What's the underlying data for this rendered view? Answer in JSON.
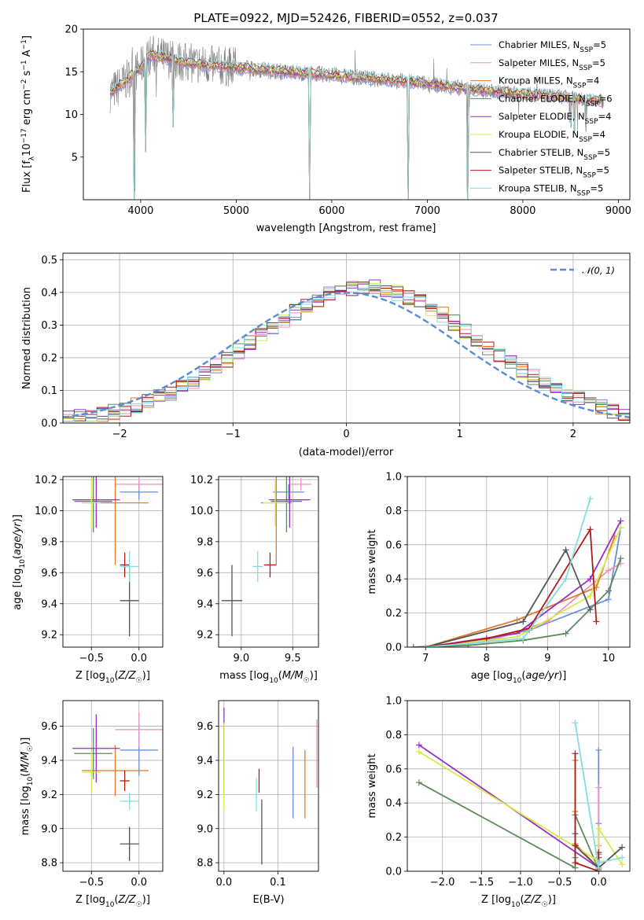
{
  "figure": {
    "title": "PLATE=0922, MJD=52426, FIBERID=0552, z=0.037"
  },
  "series_styles": [
    {
      "name": "Chabrier MILES, N_SSP=5",
      "color": "#6a8fe0"
    },
    {
      "name": "Salpeter MILES, N_SSP=5",
      "color": "#ee8fbf"
    },
    {
      "name": "Kroupa MILES, N_SSP=4",
      "color": "#e6782a"
    },
    {
      "name": "Chabrier ELODIE, N_SSP=6",
      "color": "#5e8a5e"
    },
    {
      "name": "Salpeter ELODIE, N_SSP=4",
      "color": "#9a2fc4"
    },
    {
      "name": "Kroupa ELODIE, N_SSP=4",
      "color": "#d6ea4a"
    },
    {
      "name": "Chabrier STELIB, N_SSP=5",
      "color": "#555555"
    },
    {
      "name": "Salpeter STELIB, N_SSP=5",
      "color": "#b01c1c"
    },
    {
      "name": "Kroupa STELIB, N_SSP=5",
      "color": "#84dede"
    }
  ],
  "chart_data": [
    {
      "id": "spectrum",
      "type": "line",
      "title": "PLATE=0922, MJD=52426, FIBERID=0552, z=0.037",
      "xlabel": "wavelength [Angstrom, rest frame]",
      "ylabel": "Flux [f_λ 10^-17 erg cm^-2 s^-1 A^-1]",
      "xlim": [
        3400,
        9120
      ],
      "ylim": [
        0,
        20
      ],
      "xticks": [
        4000,
        5000,
        6000,
        7000,
        8000,
        9000
      ],
      "yticks": [
        5,
        10,
        15,
        20
      ],
      "legend": [
        {
          "name": "Chabrier MILES, N",
          "sub": "SSP",
          "tail": "=5",
          "color": "#6a8fe0"
        },
        {
          "name": "Salpeter MILES, N",
          "sub": "SSP",
          "tail": "=5",
          "color": "#ee8fbf"
        },
        {
          "name": "Kroupa MILES, N",
          "sub": "SSP",
          "tail": "=4",
          "color": "#e6782a"
        },
        {
          "name": "Chabrier ELODIE, N",
          "sub": "SSP",
          "tail": "=6",
          "color": "#5e8a5e"
        },
        {
          "name": "Salpeter ELODIE, N",
          "sub": "SSP",
          "tail": "=4",
          "color": "#9a2fc4"
        },
        {
          "name": "Kroupa ELODIE, N",
          "sub": "SSP",
          "tail": "=4",
          "color": "#d6ea4a"
        },
        {
          "name": "Chabrier STELIB, N",
          "sub": "SSP",
          "tail": "=5",
          "color": "#555555"
        },
        {
          "name": "Salpeter STELIB, N",
          "sub": "SSP",
          "tail": "=5",
          "color": "#b01c1c"
        },
        {
          "name": "Kroupa STELIB, N",
          "sub": "SSP",
          "tail": "=5",
          "color": "#84dede"
        }
      ],
      "legend_position": "upper-right",
      "continuum": {
        "x": [
          3680,
          3800,
          4000,
          4100,
          4300,
          4500,
          4700,
          5000,
          5200,
          5500,
          5800,
          6000,
          6300,
          6600,
          6800,
          7000,
          7200,
          7400,
          7600,
          7800,
          8000,
          8200,
          8400,
          8600,
          8850
        ],
        "y": [
          12.5,
          13.5,
          15.5,
          17.0,
          16.5,
          16.0,
          15.8,
          15.5,
          15.3,
          15.0,
          14.8,
          14.6,
          14.3,
          14.0,
          13.8,
          13.6,
          13.3,
          13.0,
          12.8,
          12.6,
          12.4,
          12.3,
          12.1,
          11.8,
          11.6
        ]
      },
      "absorption_dips": [
        {
          "x": 3935,
          "y": 0.0
        },
        {
          "x": 4050,
          "y": 5.6
        },
        {
          "x": 4340,
          "y": 8.5
        },
        {
          "x": 5770,
          "y": 0.0
        },
        {
          "x": 6800,
          "y": 0.0
        },
        {
          "x": 7420,
          "y": 0.0
        },
        {
          "x": 8500,
          "y": 8.5
        },
        {
          "x": 8540,
          "y": 7.8
        },
        {
          "x": 8660,
          "y": 8.0
        }
      ],
      "grid": false
    },
    {
      "id": "residuals",
      "type": "histogram",
      "xlabel": "(data-model)/error",
      "ylabel": "Normed distribution",
      "xlim": [
        -2.5,
        2.5
      ],
      "ylim": [
        0,
        0.52
      ],
      "xticks": [
        -2,
        -1,
        0,
        1,
        2
      ],
      "yticks": [
        0.0,
        0.1,
        0.2,
        0.3,
        0.4,
        0.5
      ],
      "legend": [
        {
          "name": "N(0,1)",
          "label": "𝒩(0, 1)",
          "color": "#5b8bd8",
          "style": "dashed"
        }
      ],
      "legend_position": "upper-right",
      "bin_width": 0.1,
      "gaussian": {
        "mean": 0,
        "sigma": 1
      },
      "grid": true
    },
    {
      "id": "age_vs_Z",
      "type": "errorbar",
      "xlabel": "Z [log10(Z/Z☉)]",
      "ylabel": "age [log10(age/yr)]",
      "xlim": [
        -0.8,
        0.25
      ],
      "ylim": [
        9.12,
        10.22
      ],
      "xticks": [
        -0.5,
        0.0
      ],
      "yticks": [
        9.2,
        9.4,
        9.6,
        9.8,
        10.0,
        10.2
      ],
      "points": [
        {
          "series": 0,
          "x": 0.0,
          "xerr": 0.2,
          "y": 10.12,
          "yerr": 0.05
        },
        {
          "series": 1,
          "x": 0.0,
          "xerr": 0.25,
          "y": 10.17,
          "yerr": 0.04
        },
        {
          "series": 2,
          "x": -0.25,
          "xerr": 0.35,
          "y": 10.05,
          "yerr": 0.4
        },
        {
          "series": 3,
          "x": -0.48,
          "xerr": 0.2,
          "y": 10.06,
          "yerr": 0.2
        },
        {
          "series": 4,
          "x": -0.45,
          "xerr": 0.25,
          "y": 10.07,
          "yerr": 0.18
        },
        {
          "series": 5,
          "x": -0.5,
          "xerr": 0.1,
          "y": 10.05,
          "yerr": 0.15
        },
        {
          "series": 6,
          "x": -0.1,
          "xerr": 0.1,
          "y": 9.42,
          "yerr": 0.23
        },
        {
          "series": 7,
          "x": -0.15,
          "xerr": 0.05,
          "y": 9.65,
          "yerr": 0.08
        },
        {
          "series": 8,
          "x": -0.1,
          "xerr": 0.1,
          "y": 9.64,
          "yerr": 0.1
        }
      ],
      "grid": true
    },
    {
      "id": "age_vs_mass",
      "type": "errorbar",
      "xlabel": "mass [log10(M/M☉)]",
      "ylabel": "",
      "xlim": [
        8.78,
        9.75
      ],
      "ylim": [
        9.12,
        10.22
      ],
      "xticks": [
        9.0,
        9.5
      ],
      "yticks": [
        9.2,
        9.4,
        9.6,
        9.8,
        10.0,
        10.2
      ],
      "points": [
        {
          "series": 0,
          "x": 9.46,
          "xerr": 0.15,
          "y": 10.12,
          "yerr": 0.05
        },
        {
          "series": 1,
          "x": 9.58,
          "xerr": 0.1,
          "y": 10.17,
          "yerr": 0.04
        },
        {
          "series": 2,
          "x": 9.34,
          "xerr": 0.15,
          "y": 10.05,
          "yerr": 0.4
        },
        {
          "series": 3,
          "x": 9.44,
          "xerr": 0.15,
          "y": 10.06,
          "yerr": 0.2
        },
        {
          "series": 4,
          "x": 9.47,
          "xerr": 0.2,
          "y": 10.07,
          "yerr": 0.18
        },
        {
          "series": 5,
          "x": 9.33,
          "xerr": 0.12,
          "y": 10.05,
          "yerr": 0.15
        },
        {
          "series": 6,
          "x": 8.91,
          "xerr": 0.1,
          "y": 9.42,
          "yerr": 0.23
        },
        {
          "series": 7,
          "x": 9.28,
          "xerr": 0.06,
          "y": 9.65,
          "yerr": 0.08
        },
        {
          "series": 8,
          "x": 9.16,
          "xerr": 0.05,
          "y": 9.64,
          "yerr": 0.1
        }
      ],
      "grid": true
    },
    {
      "id": "weight_vs_age",
      "type": "line",
      "xlabel": "age [log10(age/yr)]",
      "ylabel": "mass weight",
      "xlim": [
        6.7,
        10.35
      ],
      "ylim": [
        0,
        1.0
      ],
      "xticks": [
        7,
        8,
        9,
        10
      ],
      "yticks": [
        0.0,
        0.2,
        0.4,
        0.6,
        0.8,
        1.0
      ],
      "series": [
        {
          "series": 0,
          "x": [
            6.8,
            7.7,
            8.7,
            10.0,
            10.2
          ],
          "y": [
            0.0,
            0.02,
            0.1,
            0.28,
            0.7
          ]
        },
        {
          "series": 1,
          "x": [
            7.0,
            8.0,
            9.0,
            10.0,
            10.2
          ],
          "y": [
            0.0,
            0.03,
            0.15,
            0.45,
            0.49
          ]
        },
        {
          "series": 2,
          "x": [
            7.0,
            8.5,
            9.8,
            10.1
          ],
          "y": [
            0.0,
            0.16,
            0.35,
            0.65
          ]
        },
        {
          "series": 3,
          "x": [
            6.8,
            7.7,
            8.6,
            9.3,
            10.0,
            10.2
          ],
          "y": [
            0.0,
            0.01,
            0.04,
            0.08,
            0.33,
            0.52
          ]
        },
        {
          "series": 4,
          "x": [
            7.0,
            8.5,
            9.7,
            10.2
          ],
          "y": [
            0.0,
            0.08,
            0.4,
            0.74
          ]
        },
        {
          "series": 5,
          "x": [
            7.0,
            8.5,
            9.7,
            10.2
          ],
          "y": [
            0.0,
            0.06,
            0.3,
            0.7
          ]
        },
        {
          "series": 6,
          "x": [
            7.0,
            8.6,
            9.3,
            9.7
          ],
          "y": [
            0.0,
            0.15,
            0.57,
            0.22
          ]
        },
        {
          "series": 7,
          "x": [
            7.0,
            8.0,
            8.7,
            9.7,
            9.8
          ],
          "y": [
            0.0,
            0.05,
            0.11,
            0.69,
            0.15
          ]
        },
        {
          "series": 8,
          "x": [
            7.0,
            8.6,
            9.3,
            9.7
          ],
          "y": [
            0.0,
            0.05,
            0.4,
            0.87
          ]
        }
      ],
      "grid": true
    },
    {
      "id": "mass_vs_Z",
      "type": "errorbar",
      "xlabel": "Z [log10(Z/Z☉)]",
      "ylabel": "mass [log10(M/M☉)]",
      "xlim": [
        -0.8,
        0.25
      ],
      "ylim": [
        8.75,
        9.75
      ],
      "xticks": [
        -0.5,
        0.0
      ],
      "yticks": [
        8.8,
        9.0,
        9.2,
        9.4,
        9.6
      ],
      "points": [
        {
          "series": 0,
          "x": 0.0,
          "xerr": 0.2,
          "y": 9.46,
          "yerr": 0.15
        },
        {
          "series": 1,
          "x": 0.0,
          "xerr": 0.25,
          "y": 9.58,
          "yerr": 0.1
        },
        {
          "series": 2,
          "x": -0.25,
          "xerr": 0.35,
          "y": 9.34,
          "yerr": 0.15
        },
        {
          "series": 3,
          "x": -0.48,
          "xerr": 0.2,
          "y": 9.44,
          "yerr": 0.15
        },
        {
          "series": 4,
          "x": -0.45,
          "xerr": 0.25,
          "y": 9.47,
          "yerr": 0.2
        },
        {
          "series": 5,
          "x": -0.5,
          "xerr": 0.1,
          "y": 9.33,
          "yerr": 0.12
        },
        {
          "series": 6,
          "x": -0.1,
          "xerr": 0.1,
          "y": 8.91,
          "yerr": 0.1
        },
        {
          "series": 7,
          "x": -0.15,
          "xerr": 0.05,
          "y": 9.28,
          "yerr": 0.06
        },
        {
          "series": 8,
          "x": -0.1,
          "xerr": 0.1,
          "y": 9.16,
          "yerr": 0.05
        }
      ],
      "grid": true
    },
    {
      "id": "mass_vs_ebv",
      "type": "errorbar",
      "xlabel": "E(B-V)",
      "ylabel": "",
      "xlim": [
        -0.01,
        0.175
      ],
      "ylim": [
        8.75,
        9.75
      ],
      "xticks": [
        0.0,
        0.1
      ],
      "yticks": [
        8.8,
        9.0,
        9.2,
        9.4,
        9.6
      ],
      "points": [
        {
          "series": 0,
          "x": 0.128,
          "xerr": 0.0,
          "y": 9.27,
          "yerr": 0.21
        },
        {
          "series": 1,
          "x": 0.172,
          "xerr": 0.0,
          "y": 9.44,
          "yerr": 0.2
        },
        {
          "series": 2,
          "x": 0.15,
          "xerr": 0.0,
          "y": 9.26,
          "yerr": 0.2
        },
        {
          "series": 3,
          "x": 0.0,
          "xerr": 0.0,
          "y": 9.4,
          "yerr": 0.2
        },
        {
          "series": 4,
          "x": 0.0,
          "xerr": 0.0,
          "y": 9.5,
          "yerr": 0.21
        },
        {
          "series": 5,
          "x": 0.0,
          "xerr": 0.0,
          "y": 9.36,
          "yerr": 0.26
        },
        {
          "series": 6,
          "x": 0.07,
          "xerr": 0.0,
          "y": 8.98,
          "yerr": 0.19
        },
        {
          "series": 7,
          "x": 0.065,
          "xerr": 0.0,
          "y": 9.28,
          "yerr": 0.07
        },
        {
          "series": 8,
          "x": 0.06,
          "xerr": 0.0,
          "y": 9.2,
          "yerr": 0.1
        }
      ],
      "grid": true
    },
    {
      "id": "weight_vs_Z",
      "type": "line",
      "xlabel": "Z [log10(Z/Z☉)]",
      "ylabel": "mass weight",
      "xlim": [
        -2.45,
        0.4
      ],
      "ylim": [
        0,
        1.0
      ],
      "xticks": [
        -2.0,
        -1.5,
        -1.0,
        -0.5,
        0.0
      ],
      "yticks": [
        0.0,
        0.2,
        0.4,
        0.6,
        0.8,
        1.0
      ],
      "series": [
        {
          "series": 0,
          "x": [
            0.0,
            0.0,
            0.0,
            0.0,
            0.0
          ],
          "y": [
            0.0,
            0.02,
            0.1,
            0.28,
            0.71
          ]
        },
        {
          "series": 1,
          "x": [
            0.0,
            0.0,
            0.0,
            0.0
          ],
          "y": [
            0.0,
            0.03,
            0.15,
            0.49
          ]
        },
        {
          "series": 2,
          "x": [
            -0.3,
            -0.3,
            -0.3,
            0.0
          ],
          "y": [
            0.65,
            0.35,
            0.16,
            0.02
          ]
        },
        {
          "series": 3,
          "x": [
            -2.3,
            -0.3,
            -0.3,
            -0.3,
            0.0
          ],
          "y": [
            0.52,
            0.02,
            0.08,
            0.33,
            0.01
          ]
        },
        {
          "series": 4,
          "x": [
            -2.3,
            0.0,
            0.0
          ],
          "y": [
            0.74,
            0.02,
            0.08
          ]
        },
        {
          "series": 5,
          "x": [
            -2.3,
            0.0,
            0.0,
            0.3
          ],
          "y": [
            0.7,
            0.06,
            0.25,
            0.04
          ]
        },
        {
          "series": 6,
          "x": [
            -0.3,
            -0.3,
            0.0,
            0.3
          ],
          "y": [
            0.22,
            0.15,
            0.02,
            0.14
          ]
        },
        {
          "series": 7,
          "x": [
            -0.3,
            -0.3,
            -0.3,
            0.0,
            0.0
          ],
          "y": [
            0.69,
            0.15,
            0.05,
            0.0,
            0.11
          ]
        },
        {
          "series": 8,
          "x": [
            -0.3,
            0.0,
            0.0,
            0.3
          ],
          "y": [
            0.87,
            0.02,
            0.05,
            0.08
          ]
        }
      ],
      "grid": true
    }
  ]
}
